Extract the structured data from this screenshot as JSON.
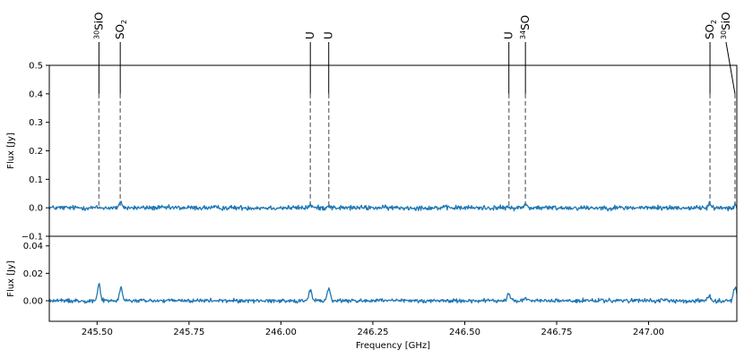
{
  "chart_data": [
    {
      "type": "line",
      "panel": "top",
      "ylabel": "Flux [Jy]",
      "xlabel": "",
      "xlim": [
        245.37,
        247.24
      ],
      "ylim": [
        -0.1,
        0.5
      ],
      "yticks": [
        -0.1,
        0.0,
        0.1,
        0.2,
        0.3,
        0.4,
        0.5
      ],
      "ytick_labels": [
        "−0.1",
        "0.0",
        "0.1",
        "0.2",
        "0.3",
        "0.4",
        "0.5"
      ],
      "series": [
        {
          "color": "#1f77b4",
          "noise_amplitude": 0.007,
          "peaks": [
            {
              "x": 245.565,
              "y": 0.018
            },
            {
              "x": 246.08,
              "y": 0.01
            },
            {
              "x": 246.13,
              "y": 0.008
            },
            {
              "x": 246.665,
              "y": 0.012
            },
            {
              "x": 247.165,
              "y": 0.012
            },
            {
              "x": 247.235,
              "y": 0.01
            }
          ]
        }
      ],
      "line_markers": {
        "dash_from": 0.0,
        "dash_to": 0.4,
        "color": "#808080",
        "lines": [
          {
            "x": 245.505,
            "label": "30SiO"
          },
          {
            "x": 245.563,
            "label": "SO2"
          },
          {
            "x": 246.08,
            "label": "U"
          },
          {
            "x": 246.13,
            "label": "U"
          },
          {
            "x": 246.62,
            "label": "U"
          },
          {
            "x": 246.665,
            "label": "34SO"
          },
          {
            "x": 247.167,
            "label": "SO2"
          },
          {
            "x": 247.235,
            "label": "30SiO"
          }
        ],
        "label_text": [
          {
            "main": "SiO",
            "sup": "30",
            "sub": ""
          },
          {
            "main": "SO",
            "sup": "",
            "sub": "2"
          },
          {
            "main": "U",
            "sup": "",
            "sub": ""
          },
          {
            "main": "U",
            "sup": "",
            "sub": ""
          },
          {
            "main": "U",
            "sup": "",
            "sub": ""
          },
          {
            "main": "SO",
            "sup": "34",
            "sub": ""
          },
          {
            "main": "SO",
            "sup": "",
            "sub": "2"
          },
          {
            "main": "SiO",
            "sup": "30",
            "sub": ""
          }
        ]
      }
    },
    {
      "type": "line",
      "panel": "bottom",
      "ylabel": "Flux [Jy]",
      "xlabel": "Frequency [GHz]",
      "xlim": [
        245.37,
        247.24
      ],
      "ylim": [
        -0.015,
        0.047
      ],
      "yticks": [
        0.0,
        0.02,
        0.04
      ],
      "ytick_labels": [
        "0.00",
        "0.02",
        "0.04"
      ],
      "xticks": [
        245.5,
        245.75,
        246.0,
        246.25,
        246.5,
        246.75,
        247.0
      ],
      "xtick_labels": [
        "245.50",
        "245.75",
        "246.00",
        "246.25",
        "246.50",
        "246.75",
        "247.00"
      ],
      "series": [
        {
          "color": "#1f77b4",
          "noise_amplitude": 0.0012,
          "peaks": [
            {
              "x": 245.505,
              "y": 0.012
            },
            {
              "x": 245.565,
              "y": 0.009
            },
            {
              "x": 246.08,
              "y": 0.0075
            },
            {
              "x": 246.13,
              "y": 0.009
            },
            {
              "x": 246.62,
              "y": 0.005
            },
            {
              "x": 246.665,
              "y": 0.002
            },
            {
              "x": 247.165,
              "y": 0.004
            },
            {
              "x": 247.235,
              "y": 0.01
            }
          ]
        }
      ]
    }
  ]
}
